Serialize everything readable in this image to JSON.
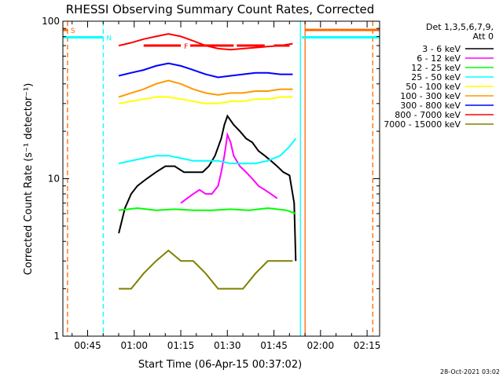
{
  "chart_data": {
    "type": "line",
    "title": "RHESSI Observing Summary Count Rates, Corrected",
    "xlabel": "Start Time (06-Apr-15 00:37:02)",
    "ylabel": "Corrected Count Rate (s⁻¹ detector⁻¹)",
    "x_unit": "minutes after 00:37:02",
    "xlim": [
      0,
      102
    ],
    "ylim": [
      1,
      100
    ],
    "y_scale": "log",
    "x_ticks": [
      {
        "x": 7.97,
        "label": "00:45"
      },
      {
        "x": 22.97,
        "label": "01:00"
      },
      {
        "x": 37.97,
        "label": "01:15"
      },
      {
        "x": 52.97,
        "label": "01:30"
      },
      {
        "x": 67.97,
        "label": "01:45"
      },
      {
        "x": 82.97,
        "label": "02:00"
      },
      {
        "x": 97.97,
        "label": "02:15"
      }
    ],
    "y_ticks": [
      {
        "y": 1,
        "label": "1"
      },
      {
        "y": 10,
        "label": "10"
      },
      {
        "y": 100,
        "label": "100"
      }
    ],
    "legend": {
      "placement": "right",
      "header": [
        "Det 1,3,5,6,7,9,",
        "Att 0"
      ]
    },
    "series": [
      {
        "name": "3 - 6 keV",
        "color": "#000000",
        "x": [
          18,
          20,
          22,
          24,
          27,
          30,
          33,
          36,
          39,
          42,
          45,
          47,
          49,
          51,
          52,
          53,
          55,
          57,
          59,
          61,
          63,
          65,
          67,
          69,
          71,
          73,
          74.5,
          75
        ],
        "y": [
          4.5,
          6.5,
          8,
          9,
          10,
          11,
          12,
          12,
          11,
          11,
          11,
          12,
          14,
          18,
          22,
          25,
          22,
          20,
          18,
          17,
          15,
          14,
          13,
          12,
          11,
          10.5,
          7,
          3
        ]
      },
      {
        "name": "6 - 12 keV",
        "color": "#ff00ff",
        "x": [
          38,
          40,
          42,
          44,
          46,
          48,
          50,
          51,
          52,
          53,
          54,
          55,
          57,
          59,
          61,
          63,
          65,
          67,
          69
        ],
        "y": [
          7,
          7.5,
          8,
          8.5,
          8,
          8,
          9,
          11,
          14,
          19,
          17,
          14,
          12,
          11,
          10,
          9,
          8.5,
          8,
          7.5
        ]
      },
      {
        "name": "12 - 25 keV",
        "color": "#00ff00",
        "x": [
          18,
          24,
          30,
          36,
          42,
          48,
          54,
          60,
          66,
          72,
          75
        ],
        "y": [
          6.3,
          6.5,
          6.3,
          6.4,
          6.3,
          6.3,
          6.4,
          6.3,
          6.5,
          6.3,
          6
        ]
      },
      {
        "name": "25 - 50 keV",
        "color": "#00ffff",
        "x": [
          18,
          22,
          26,
          30,
          34,
          38,
          42,
          46,
          50,
          54,
          58,
          62,
          66,
          70,
          73,
          75
        ],
        "y": [
          12.5,
          13,
          13.5,
          14,
          14,
          13.5,
          13,
          13,
          13,
          12.5,
          12.5,
          12.5,
          13,
          14,
          16,
          18
        ]
      },
      {
        "name": "50 - 100 keV",
        "color": "#ffff00",
        "x": [
          18,
          22,
          26,
          30,
          34,
          38,
          42,
          46,
          50,
          54,
          58,
          62,
          66,
          70,
          74
        ],
        "y": [
          30,
          31,
          32,
          33,
          33,
          32,
          31,
          30,
          30,
          31,
          31,
          32,
          32,
          33,
          33
        ]
      },
      {
        "name": "100 - 300 keV",
        "color": "#ff9900",
        "x": [
          18,
          22,
          26,
          30,
          34,
          38,
          42,
          46,
          50,
          54,
          58,
          62,
          66,
          70,
          74
        ],
        "y": [
          33,
          35,
          37,
          40,
          42,
          40,
          37,
          35,
          34,
          35,
          35,
          36,
          36,
          37,
          37
        ]
      },
      {
        "name": "300 - 800 keV",
        "color": "#0000ff",
        "x": [
          18,
          22,
          26,
          30,
          34,
          38,
          42,
          46,
          50,
          54,
          58,
          62,
          66,
          70,
          74
        ],
        "y": [
          45,
          47,
          49,
          52,
          54,
          52,
          49,
          46,
          44,
          45,
          46,
          47,
          47,
          46,
          46
        ]
      },
      {
        "name": "800 - 7000 keV",
        "color": "#ff0000",
        "x": [
          18,
          22,
          26,
          30,
          34,
          38,
          42,
          46,
          50,
          54,
          58,
          62,
          66,
          70,
          74
        ],
        "y": [
          70,
          73,
          77,
          80,
          83,
          80,
          75,
          70,
          67,
          66,
          67,
          68,
          69,
          70,
          72
        ]
      },
      {
        "name": "7000 - 15000 keV",
        "color": "#808000",
        "x": [
          18,
          22,
          26,
          30,
          34,
          38,
          42,
          46,
          50,
          54,
          58,
          62,
          66,
          70,
          74
        ],
        "y": [
          2,
          2,
          2.5,
          3,
          3.5,
          3,
          3,
          2.5,
          2,
          2,
          2,
          2.5,
          3,
          3,
          3
        ]
      }
    ],
    "annotations": [
      {
        "text": "S",
        "color": "#ff6600",
        "x": 2.5,
        "y": 88
      },
      {
        "text": "N",
        "color": "#00ffff",
        "x": 14,
        "y": 79
      },
      {
        "text": "F",
        "color": "#ff0000",
        "x": 39,
        "y": 70
      }
    ],
    "event_bars": [
      {
        "kind": "S",
        "color": "#ff6600",
        "x_start": 0,
        "x_end": 1.5,
        "y": 88
      },
      {
        "kind": "N",
        "color": "#00ffff",
        "x_start": 0,
        "x_end": 13,
        "y": 79
      },
      {
        "kind": "N",
        "color": "#00ffff",
        "x_start": 77,
        "x_end": 102,
        "y": 79
      },
      {
        "kind": "S",
        "color": "#ff6600",
        "x_start": 78,
        "x_end": 102,
        "y": 88
      },
      {
        "kind": "F",
        "color": "#ff0000",
        "x_start": 26,
        "x_end": 38,
        "y": 70
      },
      {
        "kind": "F",
        "color": "#ff0000",
        "x_start": 41,
        "x_end": 55,
        "y": 70
      },
      {
        "kind": "F",
        "color": "#ff0000",
        "x_start": 56,
        "x_end": 65,
        "y": 70
      },
      {
        "kind": "F",
        "color": "#ff0000",
        "x_start": 68,
        "x_end": 73,
        "y": 70
      }
    ],
    "vertical_lines": [
      {
        "x": 1.5,
        "color": "#ff6600",
        "dashed": true
      },
      {
        "x": 13,
        "color": "#00ffff",
        "dashed": true
      },
      {
        "x": 76.5,
        "color": "#00ffff",
        "dashed": false
      },
      {
        "x": 78,
        "color": "#ff6600",
        "dashed": false
      },
      {
        "x": 99.8,
        "color": "#ff6600",
        "dashed": true
      }
    ],
    "grid": false
  },
  "footer": {
    "timestamp": "28-Oct-2021 03:02"
  }
}
